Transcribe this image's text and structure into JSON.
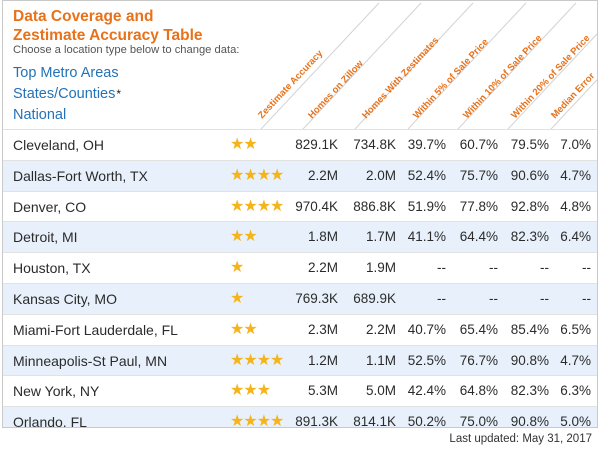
{
  "header": {
    "title_line1": "Data Coverage and",
    "title_line2": "Zestimate Accuracy Table",
    "subtitle": "Choose a location type below to change data:",
    "location_types": [
      {
        "label": "Top Metro Areas"
      },
      {
        "label": "States/Counties"
      },
      {
        "label": "National"
      }
    ],
    "asterisk": "*"
  },
  "columns": [
    "Zestimate Accuracy",
    "Homes on Zillow",
    "Homes With Zestimates",
    "Within 5% of Sale Price",
    "Within 10% of Sale Price",
    "Within 20% of Sale Price",
    "Median Error"
  ],
  "rows": [
    {
      "name": "Cleveland, OH",
      "stars": 2,
      "homes": "829.1K",
      "zestimates": "734.8K",
      "w5": "39.7%",
      "w10": "60.7%",
      "w20": "79.5%",
      "median": "7.0%"
    },
    {
      "name": "Dallas-Fort Worth, TX",
      "stars": 4,
      "homes": "2.2M",
      "zestimates": "2.0M",
      "w5": "52.4%",
      "w10": "75.7%",
      "w20": "90.6%",
      "median": "4.7%"
    },
    {
      "name": "Denver, CO",
      "stars": 4,
      "homes": "970.4K",
      "zestimates": "886.8K",
      "w5": "51.9%",
      "w10": "77.8%",
      "w20": "92.8%",
      "median": "4.8%"
    },
    {
      "name": "Detroit, MI",
      "stars": 2,
      "homes": "1.8M",
      "zestimates": "1.7M",
      "w5": "41.1%",
      "w10": "64.4%",
      "w20": "82.3%",
      "median": "6.4%"
    },
    {
      "name": "Houston, TX",
      "stars": 1,
      "homes": "2.2M",
      "zestimates": "1.9M",
      "w5": "--",
      "w10": "--",
      "w20": "--",
      "median": "--"
    },
    {
      "name": "Kansas City, MO",
      "stars": 1,
      "homes": "769.3K",
      "zestimates": "689.9K",
      "w5": "--",
      "w10": "--",
      "w20": "--",
      "median": "--"
    },
    {
      "name": "Miami-Fort Lauderdale, FL",
      "stars": 2,
      "homes": "2.3M",
      "zestimates": "2.2M",
      "w5": "40.7%",
      "w10": "65.4%",
      "w20": "85.4%",
      "median": "6.5%"
    },
    {
      "name": "Minneapolis-St Paul, MN",
      "stars": 4,
      "homes": "1.2M",
      "zestimates": "1.1M",
      "w5": "52.5%",
      "w10": "76.7%",
      "w20": "90.8%",
      "median": "4.7%"
    },
    {
      "name": "New York, NY",
      "stars": 3,
      "homes": "5.3M",
      "zestimates": "5.0M",
      "w5": "42.4%",
      "w10": "64.8%",
      "w20": "82.3%",
      "median": "6.3%"
    },
    {
      "name": "Orlando, FL",
      "stars": 4,
      "homes": "891.3K",
      "zestimates": "814.1K",
      "w5": "50.2%",
      "w10": "75.0%",
      "w20": "90.8%",
      "median": "5.0%"
    }
  ],
  "footer": {
    "last_updated": "Last updated: May 31, 2017"
  },
  "colors": {
    "accent": "#e8721b",
    "link": "#2472b7",
    "star": "#f4b41a",
    "row_alt": "#e8f1fb"
  }
}
